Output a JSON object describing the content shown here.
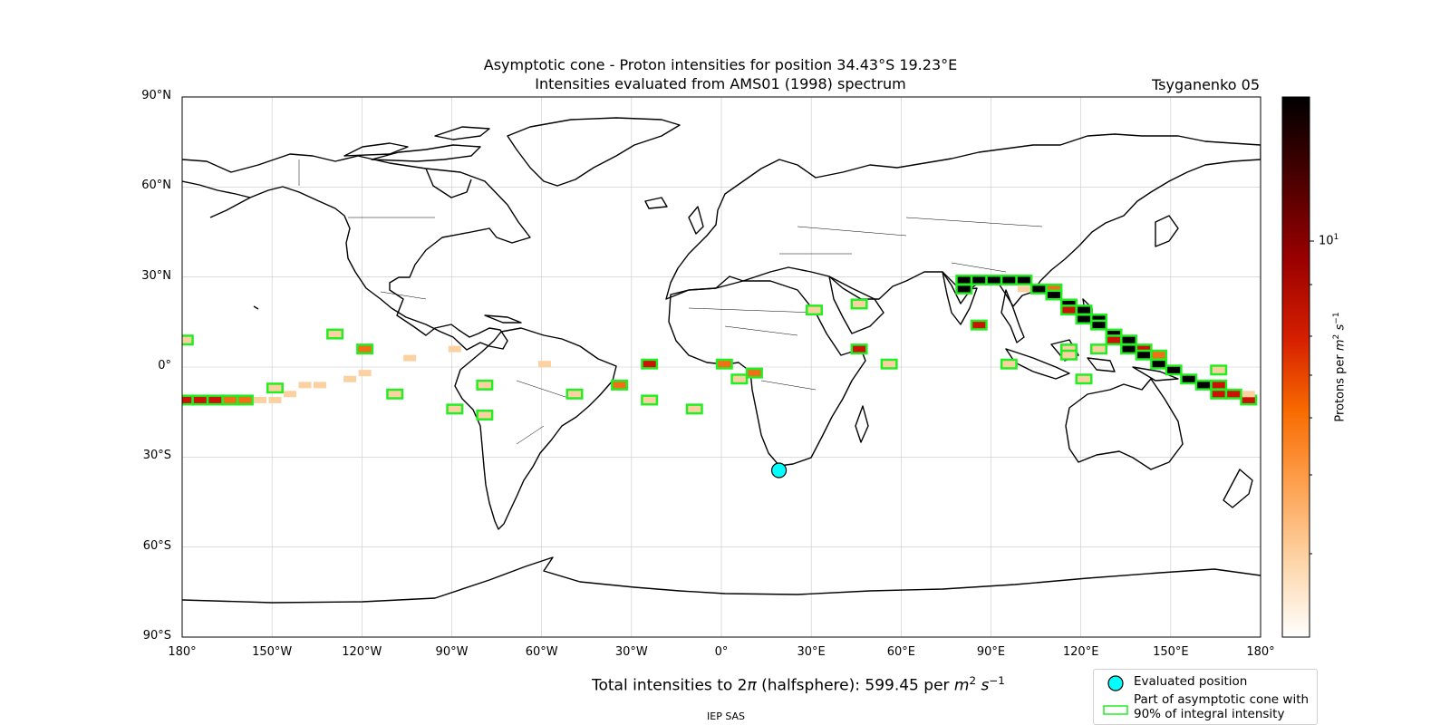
{
  "title_line1": "Asymptotic cone - Proton intensities for position 34.43°S 19.23°E",
  "title_line2": "Intensities evaluated from AMS01 (1998) spectrum",
  "model": "Tsyganenko 05",
  "lat_labels": [
    "90°N",
    "60°N",
    "30°N",
    "0°",
    "30°S",
    "60°S",
    "90°S"
  ],
  "lon_labels": [
    "180°",
    "150°W",
    "120°W",
    "90°W",
    "60°W",
    "30°W",
    "0°",
    "30°E",
    "60°E",
    "90°E",
    "120°E",
    "150°E",
    "180°"
  ],
  "colorbar": {
    "label": "Protons per m² s⁻¹",
    "tick_base": "10",
    "tick_exp": "1",
    "colormap": [
      "#ffffff",
      "#fdd5a8",
      "#fd9a45",
      "#f86a00",
      "#d62000",
      "#9a0000",
      "#4a0000",
      "#000000"
    ]
  },
  "footer": {
    "total_prefix": "Total intensities to 2",
    "pi": "π",
    "total_mid": " (halfsphere): 599.45 per ",
    "m": "m",
    "m_exp": "2",
    "s": " s",
    "s_exp": "−1",
    "org": "IEP SAS"
  },
  "legend": {
    "evaluated": "Evaluated position",
    "cone_line1": "Part of asymptotic cone with",
    "cone_line2": "90% of integral intensity"
  },
  "map_colors": {
    "cone_outline": "#22ee22",
    "position_marker": "#00ffff",
    "c_dark": "#000000",
    "c_red": "#c81400",
    "c_orange": "#f07018",
    "c_pale": "#fcd1a2"
  },
  "position": {
    "lat": -34.43,
    "lon": 19.23
  },
  "cells": [
    [
      -179,
      9,
      "pale",
      1
    ],
    [
      -179,
      -11,
      "red",
      1
    ],
    [
      -174,
      -11,
      "red",
      1
    ],
    [
      -169,
      -11,
      "red",
      1
    ],
    [
      -164,
      -11,
      "orange",
      1
    ],
    [
      -159,
      -11,
      "orange",
      1
    ],
    [
      -154,
      -11,
      "pale",
      0
    ],
    [
      -149,
      -11,
      "pale",
      0
    ],
    [
      -149,
      -7,
      "pale",
      1
    ],
    [
      -144,
      -9,
      "pale",
      0
    ],
    [
      -139,
      -6,
      "pale",
      0
    ],
    [
      -134,
      -6,
      "pale",
      0
    ],
    [
      -129,
      11,
      "pale",
      1
    ],
    [
      -124,
      -4,
      "pale",
      0
    ],
    [
      -119,
      6,
      "orange",
      1
    ],
    [
      -119,
      -2,
      "pale",
      0
    ],
    [
      -109,
      -9,
      "pale",
      1
    ],
    [
      -104,
      3,
      "pale",
      0
    ],
    [
      -89,
      6,
      "pale",
      0
    ],
    [
      -89,
      -14,
      "pale",
      1
    ],
    [
      -79,
      -16,
      "pale",
      1
    ],
    [
      -79,
      -6,
      "pale",
      1
    ],
    [
      -59,
      1,
      "pale",
      0
    ],
    [
      -49,
      -9,
      "pale",
      1
    ],
    [
      -34,
      -6,
      "orange",
      1
    ],
    [
      -24,
      1,
      "red",
      1
    ],
    [
      -24,
      -11,
      "pale",
      1
    ],
    [
      -9,
      -14,
      "pale",
      1
    ],
    [
      1,
      1,
      "orange",
      1
    ],
    [
      6,
      -4,
      "pale",
      1
    ],
    [
      11,
      -2,
      "orange",
      1
    ],
    [
      31,
      19,
      "pale",
      1
    ],
    [
      46,
      21,
      "pale",
      1
    ],
    [
      46,
      6,
      "red",
      1
    ],
    [
      56,
      1,
      "pale",
      1
    ],
    [
      81,
      29,
      "dark",
      1
    ],
    [
      81,
      26,
      "dark",
      1
    ],
    [
      86,
      14,
      "red",
      1
    ],
    [
      86,
      29,
      "dark",
      1
    ],
    [
      91,
      29,
      "dark",
      1
    ],
    [
      96,
      29,
      "dark",
      1
    ],
    [
      96,
      1,
      "pale",
      1
    ],
    [
      101,
      29,
      "dark",
      1
    ],
    [
      101,
      26,
      "pale",
      0
    ],
    [
      106,
      26,
      "dark",
      1
    ],
    [
      111,
      26,
      "orange",
      1
    ],
    [
      111,
      24,
      "dark",
      1
    ],
    [
      116,
      21,
      "dark",
      1
    ],
    [
      116,
      19,
      "red",
      1
    ],
    [
      116,
      6,
      "pale",
      1
    ],
    [
      116,
      4,
      "pale",
      1
    ],
    [
      121,
      19,
      "dark",
      1
    ],
    [
      121,
      16,
      "dark",
      1
    ],
    [
      121,
      -4,
      "pale",
      1
    ],
    [
      126,
      16,
      "dark",
      1
    ],
    [
      126,
      14,
      "dark",
      1
    ],
    [
      126,
      6,
      "pale",
      1
    ],
    [
      131,
      11,
      "dark",
      1
    ],
    [
      131,
      9,
      "red",
      1
    ],
    [
      136,
      9,
      "dark",
      1
    ],
    [
      136,
      6,
      "dark",
      1
    ],
    [
      141,
      6,
      "red",
      1
    ],
    [
      141,
      4,
      "dark",
      1
    ],
    [
      146,
      4,
      "orange",
      1
    ],
    [
      146,
      1,
      "dark",
      1
    ],
    [
      151,
      -1,
      "dark",
      1
    ],
    [
      156,
      -4,
      "dark",
      1
    ],
    [
      161,
      -6,
      "dark",
      1
    ],
    [
      166,
      -6,
      "red",
      1
    ],
    [
      166,
      -1,
      "pale",
      1
    ],
    [
      166,
      -9,
      "red",
      1
    ],
    [
      171,
      -9,
      "red",
      1
    ],
    [
      176,
      -11,
      "red",
      1
    ],
    [
      176,
      -9,
      "pale",
      0
    ]
  ]
}
